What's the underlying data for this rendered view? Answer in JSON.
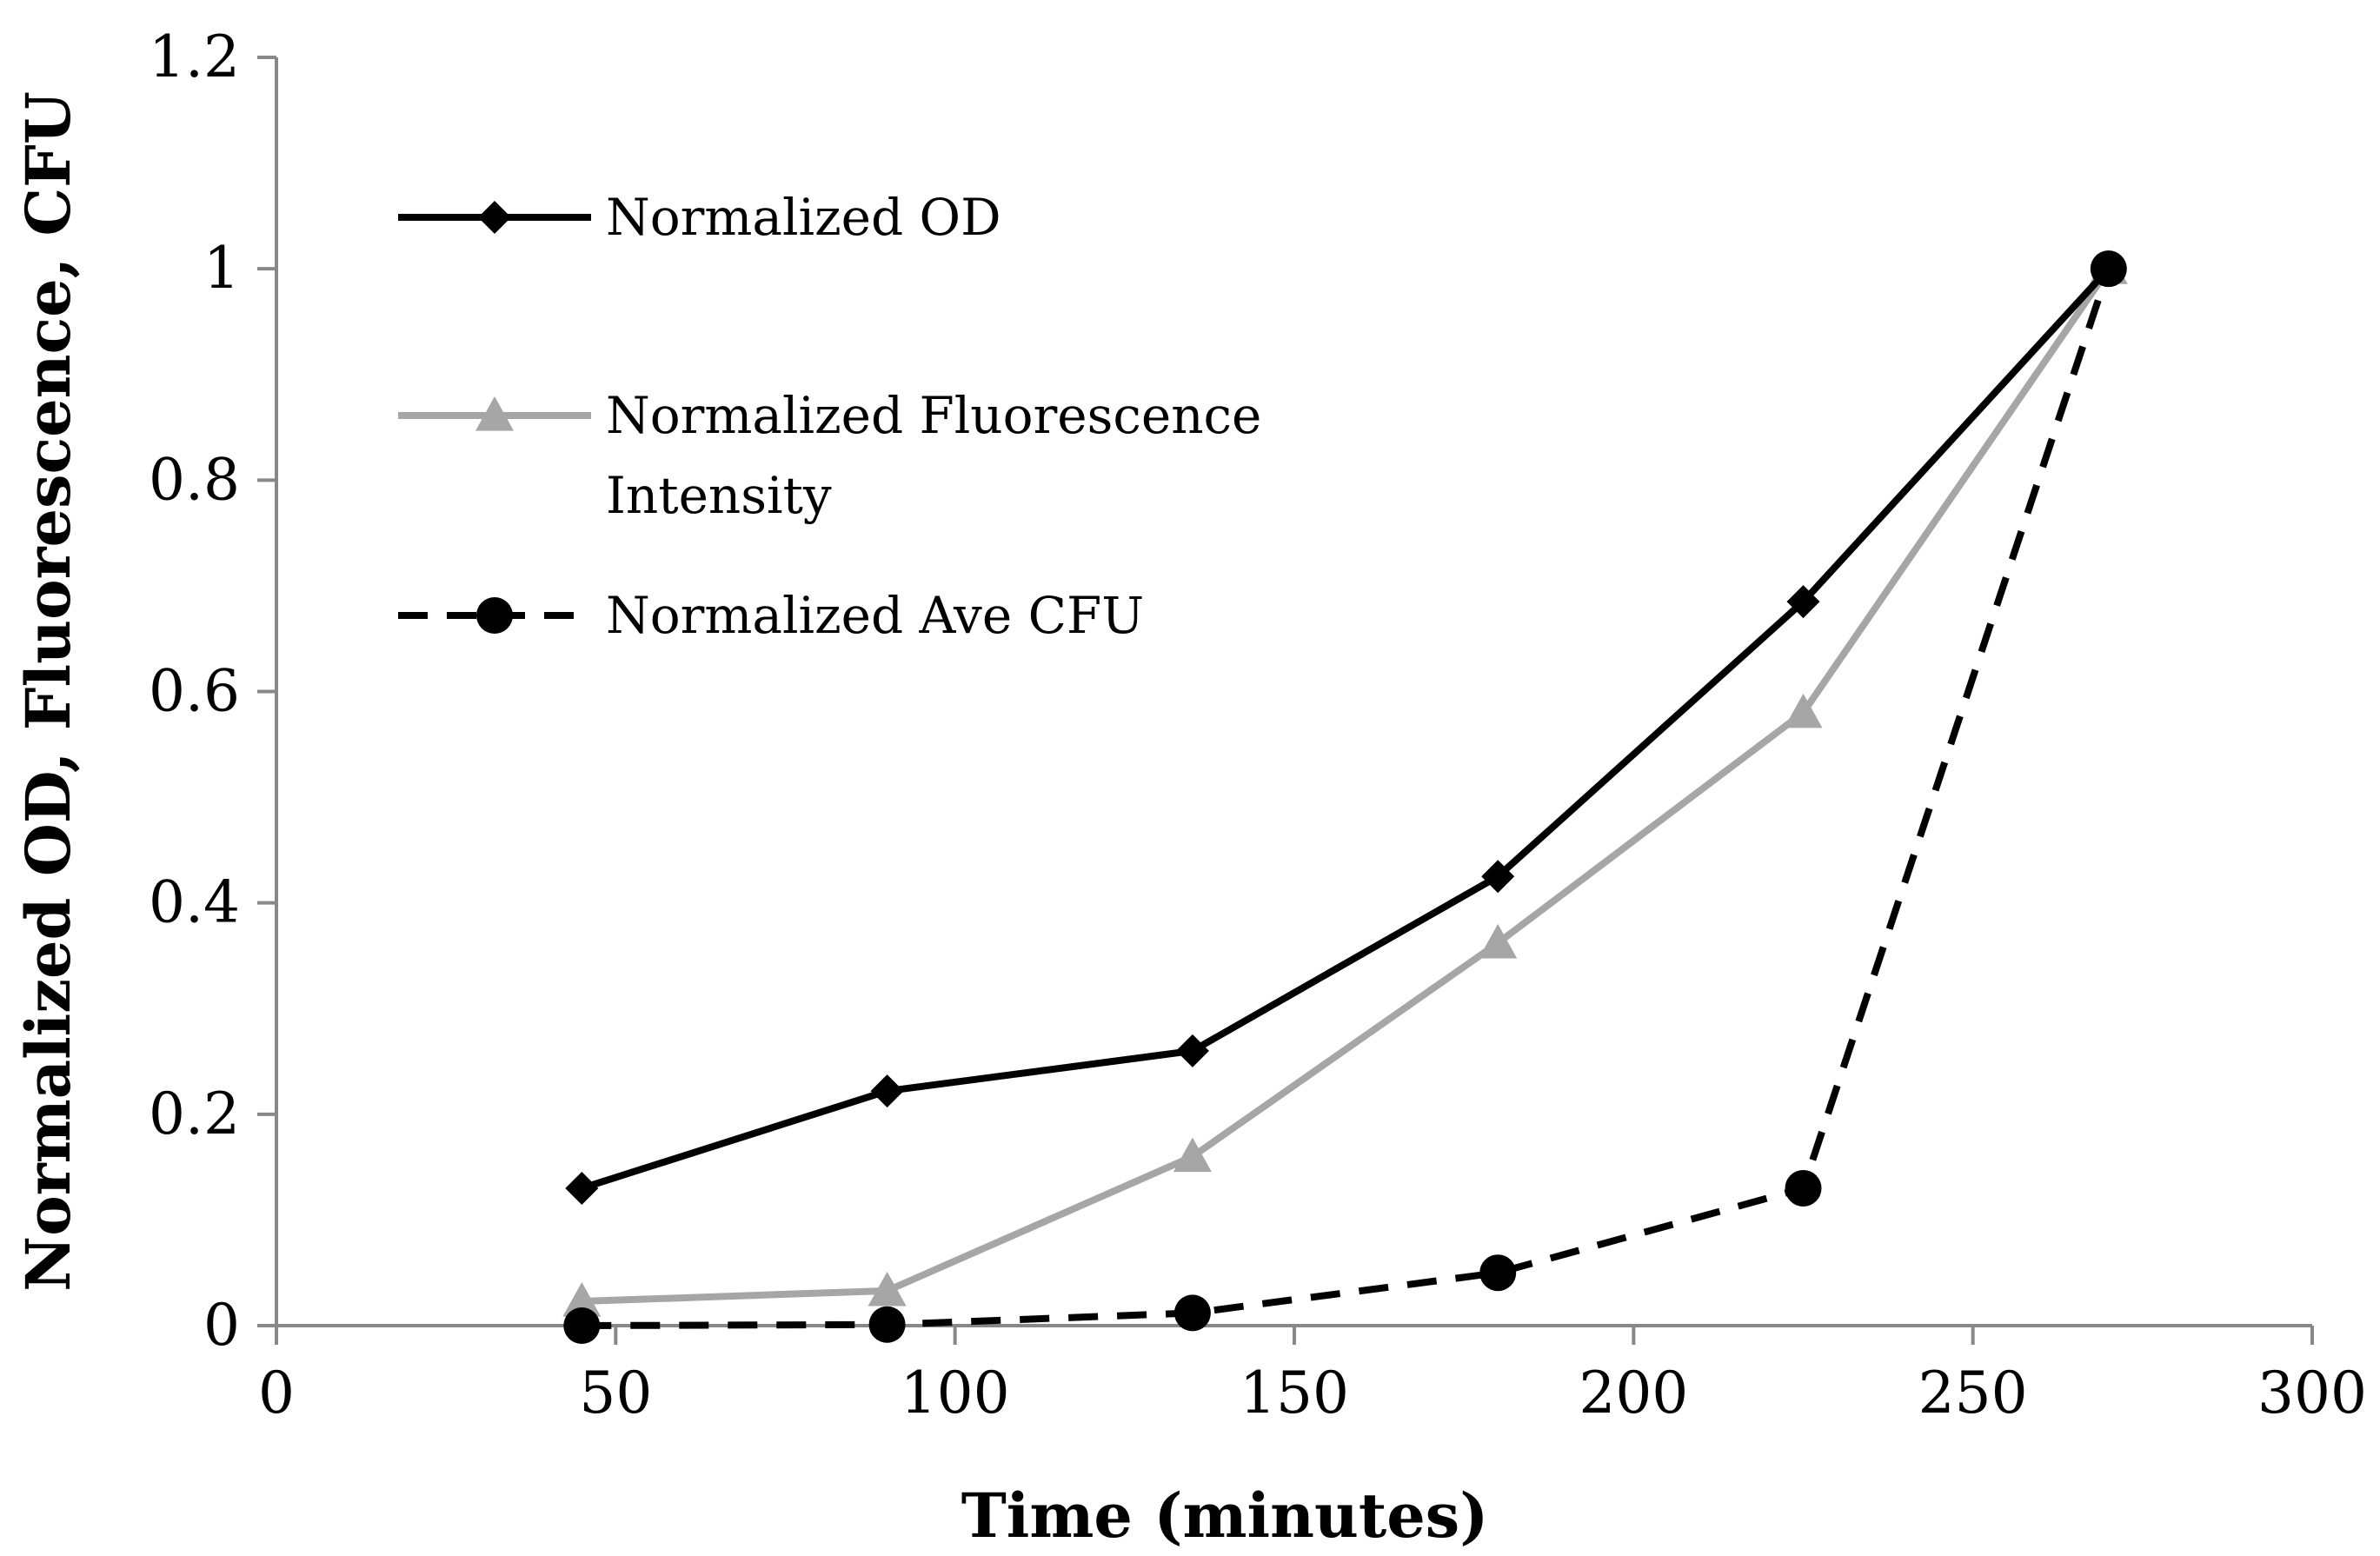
{
  "chart_data": {
    "type": "line",
    "title": "",
    "xlabel": "Time (minutes)",
    "ylabel": "Normalized OD, Fluorescence, CFU",
    "xlim": [
      0,
      300
    ],
    "ylim": [
      0,
      1.2
    ],
    "xticks": [
      0,
      50,
      100,
      150,
      200,
      250,
      300
    ],
    "yticks": [
      0,
      0.2,
      0.4,
      0.6,
      0.8,
      1,
      1.2
    ],
    "xtick_labels": [
      "0",
      "50",
      "100",
      "150",
      "200",
      "250",
      "300"
    ],
    "ytick_labels": [
      "0",
      "0.2",
      "0.4",
      "0.6",
      "0.8",
      "1",
      "1.2"
    ],
    "grid": false,
    "legend_position": "top-left",
    "x": [
      45,
      90,
      135,
      180,
      225,
      270
    ],
    "series": [
      {
        "name": "Normalized OD",
        "label_lines": [
          "Normalized OD"
        ],
        "values": [
          0.13,
          0.222,
          0.26,
          0.425,
          0.685,
          1.0
        ],
        "color": "#000000",
        "marker": "diamond",
        "dash": "solid"
      },
      {
        "name": "Normalized Fluorescence Intensity",
        "label_lines": [
          "Normalized Fluorescence",
          "Intensity"
        ],
        "values": [
          0.023,
          0.033,
          0.16,
          0.362,
          0.58,
          1.0
        ],
        "color": "#a6a6a6",
        "marker": "triangle",
        "dash": "solid"
      },
      {
        "name": "Normalized Ave CFU",
        "label_lines": [
          "Normalized Ave CFU"
        ],
        "values": [
          0.0,
          0.001,
          0.012,
          0.05,
          0.13,
          1.0
        ],
        "color": "#000000",
        "marker": "circle",
        "dash": "dashed"
      }
    ]
  }
}
